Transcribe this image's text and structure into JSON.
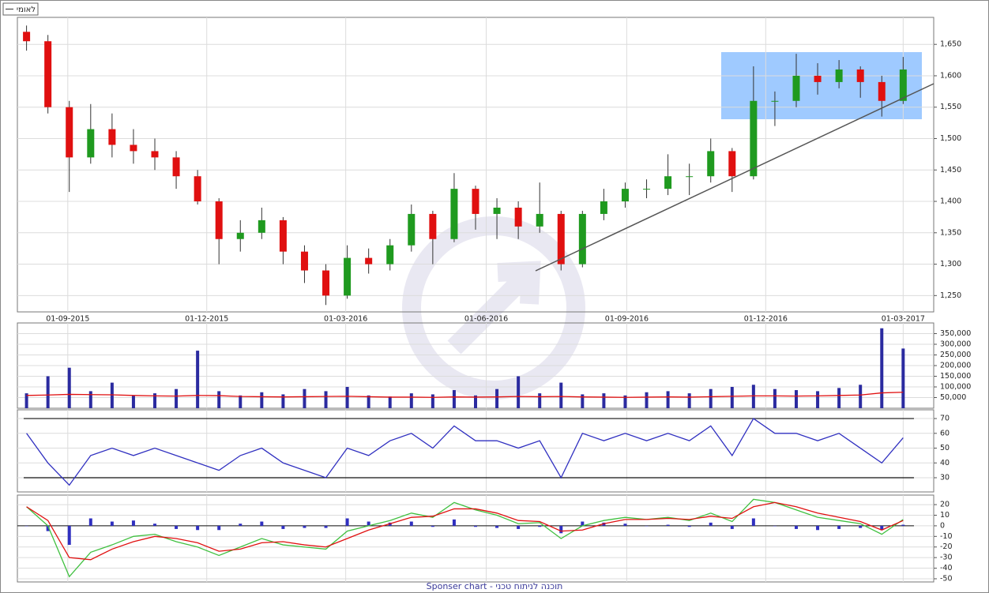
{
  "chart_data": [
    {
      "type": "candlestick",
      "name": "לאומי",
      "up_color": "#1f9a1f",
      "down_color": "#e01010",
      "x": [
        "05-08-2015",
        "19-08-2015",
        "02-09-2015",
        "16-09-2015",
        "30-09-2015",
        "14-10-2015",
        "28-10-2015",
        "11-11-2015",
        "25-11-2015",
        "09-12-2015",
        "23-12-2015",
        "06-01-2016",
        "20-01-2016",
        "03-02-2016",
        "17-02-2016",
        "02-03-2016",
        "16-03-2016",
        "30-03-2016",
        "13-04-2016",
        "27-04-2016",
        "11-05-2016",
        "25-05-2016",
        "08-06-2016",
        "22-06-2016",
        "06-07-2016",
        "20-07-2016",
        "03-08-2016",
        "17-08-2016",
        "31-08-2016",
        "14-09-2016",
        "28-09-2016",
        "12-10-2016",
        "26-10-2016",
        "09-11-2016",
        "23-11-2016",
        "07-12-2016",
        "21-12-2016",
        "04-01-2017",
        "18-01-2017",
        "01-02-2017",
        "15-02-2017",
        "01-03-2017"
      ],
      "open": [
        1670,
        1655,
        1550,
        1470,
        1515,
        1490,
        1480,
        1470,
        1440,
        1400,
        1340,
        1350,
        1370,
        1320,
        1290,
        1250,
        1310,
        1300,
        1330,
        1380,
        1340,
        1420,
        1380,
        1390,
        1360,
        1380,
        1300,
        1380,
        1400,
        1420,
        1420,
        1440,
        1440,
        1480,
        1440,
        1560,
        1560,
        1600,
        1590,
        1610,
        1590,
        1560
      ],
      "high": [
        1680,
        1665,
        1560,
        1555,
        1540,
        1515,
        1500,
        1480,
        1450,
        1405,
        1370,
        1390,
        1375,
        1330,
        1300,
        1330,
        1325,
        1340,
        1395,
        1385,
        1445,
        1425,
        1405,
        1400,
        1430,
        1385,
        1385,
        1420,
        1430,
        1435,
        1475,
        1460,
        1500,
        1485,
        1615,
        1575,
        1635,
        1620,
        1625,
        1615,
        1600,
        1630
      ],
      "low": [
        1640,
        1540,
        1415,
        1460,
        1470,
        1460,
        1450,
        1420,
        1395,
        1300,
        1320,
        1340,
        1300,
        1270,
        1235,
        1245,
        1285,
        1290,
        1320,
        1300,
        1335,
        1355,
        1340,
        1340,
        1350,
        1290,
        1295,
        1370,
        1390,
        1405,
        1410,
        1410,
        1430,
        1415,
        1435,
        1520,
        1550,
        1570,
        1580,
        1565,
        1535,
        1555
      ],
      "close": [
        1655,
        1550,
        1470,
        1515,
        1490,
        1480,
        1470,
        1440,
        1400,
        1340,
        1350,
        1370,
        1320,
        1290,
        1250,
        1310,
        1300,
        1330,
        1380,
        1340,
        1420,
        1380,
        1390,
        1360,
        1380,
        1300,
        1380,
        1400,
        1420,
        1420,
        1440,
        1440,
        1480,
        1440,
        1560,
        1560,
        1600,
        1590,
        1610,
        1590,
        1560,
        1610
      ],
      "xlim": [
        "30-07-2015",
        "21-03-2017"
      ],
      "xticks": [
        "01-09-2015",
        "01-12-2015",
        "01-03-2016",
        "01-06-2016",
        "01-09-2016",
        "01-12-2016",
        "01-03-2017"
      ],
      "ylim": [
        1224,
        1693
      ],
      "yticks": [
        {
          "value": 1250,
          "label": "1,250"
        },
        {
          "value": 1300,
          "label": "1,300"
        },
        {
          "value": 1350,
          "label": "1,350"
        },
        {
          "value": 1400,
          "label": "1,400"
        },
        {
          "value": 1450,
          "label": "1,450"
        },
        {
          "value": 1500,
          "label": "1,500"
        },
        {
          "value": 1550,
          "label": "1,550"
        },
        {
          "value": 1600,
          "label": "1,600"
        },
        {
          "value": 1650,
          "label": "1,650"
        }
      ],
      "grid": true
    },
    {
      "type": "bar",
      "ylim": [
        0,
        400000
      ],
      "yticks": [
        {
          "value": 50000,
          "label": "50,000"
        },
        {
          "value": 100000,
          "label": "100,000"
        },
        {
          "value": 150000,
          "label": "150,000"
        },
        {
          "value": 200000,
          "label": "200,000"
        },
        {
          "value": 250000,
          "label": "250,000"
        },
        {
          "value": 300000,
          "label": "300,000"
        },
        {
          "value": 350000,
          "label": "350,000"
        }
      ],
      "series": [
        {
          "kind": "bar",
          "color": "#2b2ba0",
          "values": [
            70000,
            150000,
            190000,
            80000,
            120000,
            60000,
            70000,
            90000,
            270000,
            80000,
            60000,
            75000,
            65000,
            90000,
            80000,
            100000,
            60000,
            55000,
            70000,
            65000,
            85000,
            60000,
            90000,
            150000,
            70000,
            120000,
            65000,
            70000,
            60000,
            75000,
            80000,
            70000,
            90000,
            100000,
            110000,
            90000,
            85000,
            80000,
            95000,
            110000,
            375000,
            280000
          ]
        },
        {
          "kind": "line",
          "color": "#e01010",
          "values": [
            60000,
            62000,
            65000,
            64000,
            63000,
            60000,
            58000,
            57000,
            60000,
            59000,
            55000,
            54000,
            53000,
            54000,
            55000,
            56000,
            54000,
            52000,
            52000,
            51000,
            53000,
            52000,
            53000,
            55000,
            54000,
            55000,
            53000,
            52000,
            51000,
            52000,
            53000,
            52000,
            54000,
            56000,
            58000,
            58000,
            57000,
            58000,
            60000,
            62000,
            72000,
            75000
          ]
        }
      ],
      "grid": true
    },
    {
      "type": "line",
      "ylim": [
        20.4,
        75.9
      ],
      "yticks": [
        30,
        40,
        50,
        60,
        70
      ],
      "hlines": [
        30,
        70
      ],
      "grid": true,
      "series": [
        {
          "kind": "line",
          "color": "#3030c0",
          "values": [
            60,
            40,
            25,
            45,
            50,
            45,
            50,
            45,
            40,
            35,
            45,
            50,
            40,
            35,
            30,
            50,
            45,
            55,
            60,
            50,
            65,
            55,
            55,
            50,
            55,
            30,
            60,
            55,
            60,
            55,
            60,
            55,
            65,
            45,
            70,
            60,
            60,
            55,
            60,
            50,
            40,
            57
          ]
        }
      ]
    },
    {
      "type": "combo",
      "ylim": [
        -53,
        29
      ],
      "yticks": [
        20,
        10,
        0,
        -10,
        -20,
        -30,
        -40,
        -50
      ],
      "grid": true,
      "series": [
        {
          "kind": "bar",
          "color": "#3030c0",
          "values": [
            0,
            -5,
            -18,
            7,
            4,
            5,
            2,
            -3,
            -4,
            -4,
            2,
            4,
            -3,
            -2,
            -2,
            7,
            4,
            3,
            4,
            -1,
            6,
            -1,
            -2,
            -3,
            -1,
            -7,
            4,
            3,
            2,
            0,
            1,
            -1,
            3,
            -3,
            7,
            0,
            -3,
            -4,
            -3,
            -2,
            -4,
            1
          ]
        },
        {
          "kind": "line",
          "color": "#40c040",
          "values": [
            18,
            0,
            -48,
            -25,
            -18,
            -10,
            -8,
            -15,
            -20,
            -28,
            -20,
            -12,
            -18,
            -20,
            -22,
            -5,
            0,
            5,
            12,
            8,
            22,
            15,
            10,
            2,
            3,
            -12,
            0,
            5,
            8,
            6,
            8,
            5,
            12,
            4,
            25,
            22,
            15,
            8,
            5,
            2,
            -8,
            6
          ]
        },
        {
          "kind": "line",
          "color": "#e01010",
          "values": [
            18,
            5,
            -30,
            -32,
            -22,
            -15,
            -10,
            -12,
            -16,
            -24,
            -22,
            -16,
            -15,
            -18,
            -20,
            -12,
            -4,
            2,
            8,
            9,
            16,
            16,
            12,
            5,
            4,
            -5,
            -4,
            2,
            6,
            6,
            7,
            6,
            9,
            7,
            18,
            22,
            18,
            12,
            8,
            4,
            -4,
            5
          ]
        }
      ]
    }
  ],
  "footer": "Sponser chart - תוכנה לניתוח טכני"
}
